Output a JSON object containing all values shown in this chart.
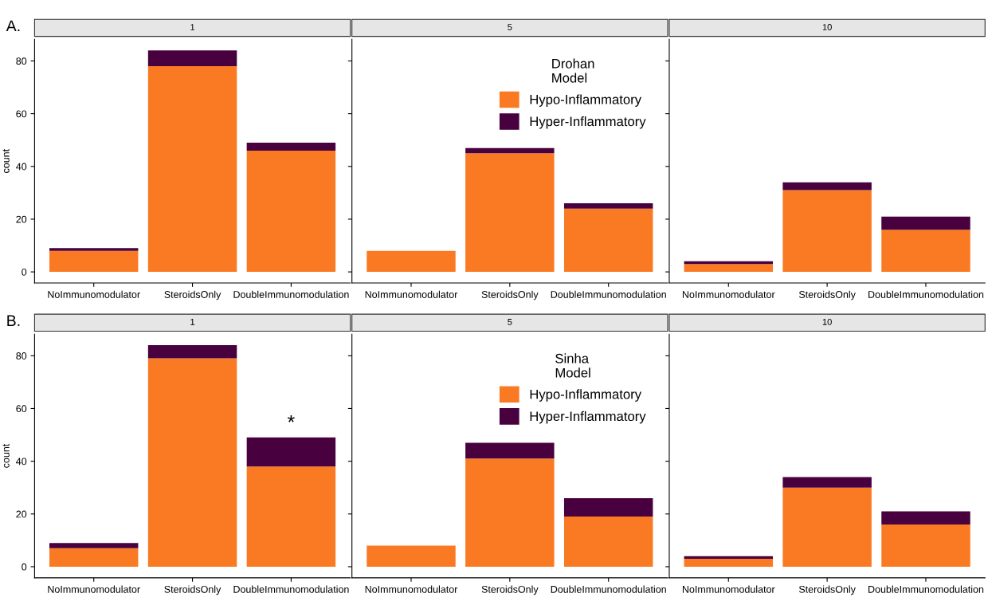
{
  "chart_data": [
    {
      "type": "bar",
      "stacked": true,
      "title": "1",
      "ylabel": "count",
      "annotations": [
        "A."
      ],
      "categories": [
        "NoImmunomodulator",
        "SteroidsOnly",
        "DoubleImmunomodulation"
      ],
      "ylim": [
        -4.2,
        88.2
      ],
      "yticks": [
        0,
        20,
        40,
        60,
        80
      ],
      "series": [
        {
          "color": "#f97a23",
          "values": [
            8,
            78,
            46
          ]
        },
        {
          "color": "#48003f",
          "values": [
            1,
            6,
            3
          ]
        }
      ]
    },
    {
      "type": "bar",
      "stacked": true,
      "title": "5",
      "legend": "top",
      "legend_title": "Drohan\nModel",
      "tick_labels": "x",
      "categories": [
        "NoImmunomodulator",
        "SteroidsOnly",
        "DoubleImmunomodulation"
      ],
      "ylim": [
        -4.2,
        88.2
      ],
      "yticks": [
        0,
        20,
        40,
        60,
        80
      ],
      "series": [
        {
          "name": "Hypo-Inflammatory",
          "color": "#f97a23",
          "values": [
            8,
            45,
            24
          ]
        },
        {
          "name": "Hyper-Inflammatory",
          "color": "#48003f",
          "values": [
            0,
            2,
            2
          ]
        }
      ]
    },
    {
      "type": "bar",
      "stacked": true,
      "title": "10",
      "tick_labels": "x",
      "categories": [
        "NoImmunomodulator",
        "SteroidsOnly",
        "DoubleImmunomodulation"
      ],
      "ylim": [
        -4.2,
        88.2
      ],
      "yticks": [
        0,
        20,
        40,
        60,
        80
      ],
      "series": [
        {
          "color": "#f97a23",
          "values": [
            3,
            31,
            16
          ]
        },
        {
          "color": "#48003f",
          "values": [
            1,
            3,
            5
          ]
        }
      ]
    },
    {
      "type": "bar",
      "stacked": true,
      "title": "1",
      "ylabel": "count",
      "annotations": [
        "B.",
        {
          "text": "*",
          "x": "DoubleImmunomodulation",
          "y": 49
        }
      ],
      "categories": [
        "NoImmunomodulator",
        "SteroidsOnly",
        "DoubleImmunomodulation"
      ],
      "ylim": [
        -4.2,
        88.2
      ],
      "yticks": [
        0,
        20,
        40,
        60,
        80
      ],
      "series": [
        {
          "color": "#f97a23",
          "values": [
            7,
            79,
            38
          ]
        },
        {
          "color": "#48003f",
          "values": [
            2,
            5,
            11
          ]
        }
      ]
    },
    {
      "type": "bar",
      "stacked": true,
      "title": "5",
      "legend": "top",
      "legend_title": "Sinha\nModel",
      "tick_labels": "x",
      "categories": [
        "NoImmunomodulator",
        "SteroidsOnly",
        "DoubleImmunomodulation"
      ],
      "ylim": [
        -4.2,
        88.2
      ],
      "yticks": [
        0,
        20,
        40,
        60,
        80
      ],
      "series": [
        {
          "name": "Hypo-Inflammatory",
          "color": "#f97a23",
          "values": [
            8,
            41,
            19
          ]
        },
        {
          "name": "Hyper-Inflammatory",
          "color": "#48003f",
          "values": [
            0,
            6,
            7
          ]
        }
      ]
    },
    {
      "type": "bar",
      "stacked": true,
      "title": "10",
      "tick_labels": "x",
      "categories": [
        "NoImmunomodulator",
        "SteroidsOnly",
        "DoubleImmunomodulation"
      ],
      "ylim": [
        -4.2,
        88.2
      ],
      "yticks": [
        0,
        20,
        40,
        60,
        80
      ],
      "series": [
        {
          "color": "#f97a23",
          "values": [
            3,
            30,
            16
          ]
        },
        {
          "color": "#48003f",
          "values": [
            1,
            4,
            5
          ]
        }
      ]
    }
  ]
}
